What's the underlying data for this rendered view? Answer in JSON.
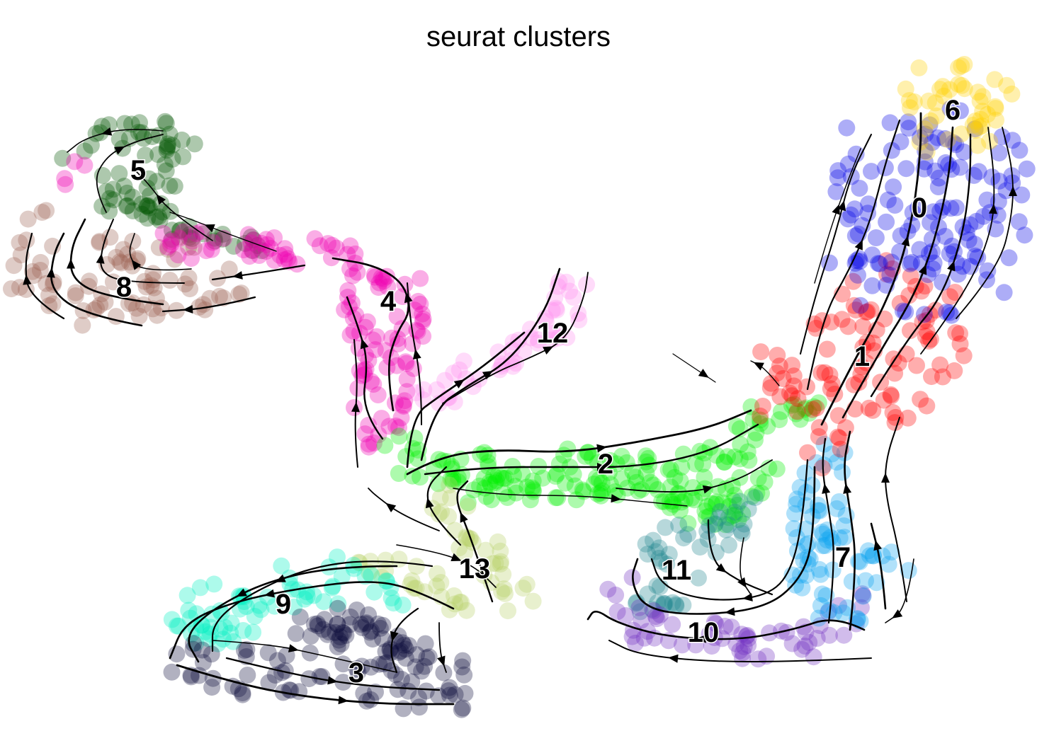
{
  "chart_data": {
    "type": "scatter",
    "title": "seurat clusters",
    "xlabel": "",
    "ylabel": "",
    "legend": "on data",
    "grid": false,
    "axes_visible": false,
    "clusters": [
      {
        "label": "0",
        "color": "#0000e6",
        "center": [
          1298,
          293
        ]
      },
      {
        "label": "1",
        "color": "#ff0000",
        "center": [
          1217,
          503
        ]
      },
      {
        "label": "2",
        "color": "#00ee00",
        "center": [
          855,
          655
        ]
      },
      {
        "label": "3",
        "color": "#0b0b3b",
        "center": [
          503,
          950
        ]
      },
      {
        "label": "4",
        "color": "#ee00b0",
        "center": [
          548,
          425
        ]
      },
      {
        "label": "5",
        "color": "#005500",
        "center": [
          195,
          240
        ]
      },
      {
        "label": "6",
        "color": "#ffd000",
        "center": [
          1345,
          155
        ]
      },
      {
        "label": "7",
        "color": "#0aa2f0",
        "center": [
          1190,
          787
        ]
      },
      {
        "label": "8",
        "color": "#9a6050",
        "center": [
          175,
          405
        ]
      },
      {
        "label": "9",
        "color": "#00f0c0",
        "center": [
          400,
          853
        ]
      },
      {
        "label": "10",
        "color": "#7030c0",
        "center": [
          993,
          893
        ]
      },
      {
        "label": "11",
        "color": "#20858f",
        "center": [
          955,
          805
        ]
      },
      {
        "label": "12",
        "color": "#ff90ee",
        "center": [
          780,
          470
        ]
      },
      {
        "label": "13",
        "color": "#b8d068",
        "center": [
          670,
          803
        ]
      }
    ]
  }
}
